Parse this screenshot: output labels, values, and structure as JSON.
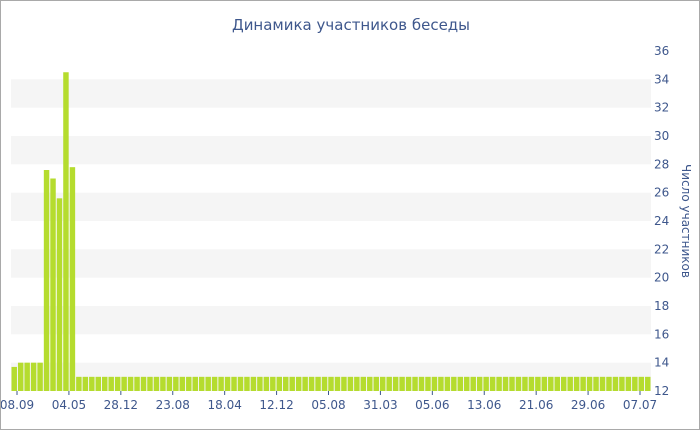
{
  "chart_data": {
    "type": "bar",
    "title": "Динамика участников беседы",
    "ylabel": "Число участников",
    "xlabel": "",
    "ylim": [
      12,
      36
    ],
    "y_ticks": [
      12,
      14,
      16,
      18,
      20,
      22,
      24,
      26,
      28,
      30,
      32,
      34,
      36
    ],
    "x_ticks": [
      "08.09",
      "04.05",
      "28.12",
      "23.08",
      "18.04",
      "12.12",
      "05.08",
      "31.03",
      "05.06",
      "13.06",
      "21.06",
      "29.06",
      "07.07"
    ],
    "grid": "horizontal alternating bands",
    "bar_color": "#b5dc2e",
    "values": [
      13.7,
      14,
      14,
      14,
      14,
      27.6,
      27,
      25.6,
      34.5,
      27.8,
      13,
      13,
      13,
      13,
      13,
      13,
      13,
      13,
      13,
      13,
      13,
      13,
      13,
      13,
      13,
      13,
      13,
      13,
      13,
      13,
      13,
      13,
      13,
      13,
      13,
      13,
      13,
      13,
      13,
      13,
      13,
      13,
      13,
      13,
      13,
      13,
      13,
      13,
      13,
      13,
      13,
      13,
      13,
      13,
      13,
      13,
      13,
      13,
      13,
      13,
      13,
      13,
      13,
      13,
      13,
      13,
      13,
      13,
      13,
      13,
      13,
      13,
      13,
      13,
      13,
      13,
      13,
      13,
      13,
      13,
      13,
      13,
      13,
      13,
      13,
      13,
      13,
      13,
      13,
      13,
      13,
      13,
      13,
      13,
      13,
      13,
      13,
      13,
      13
    ]
  }
}
